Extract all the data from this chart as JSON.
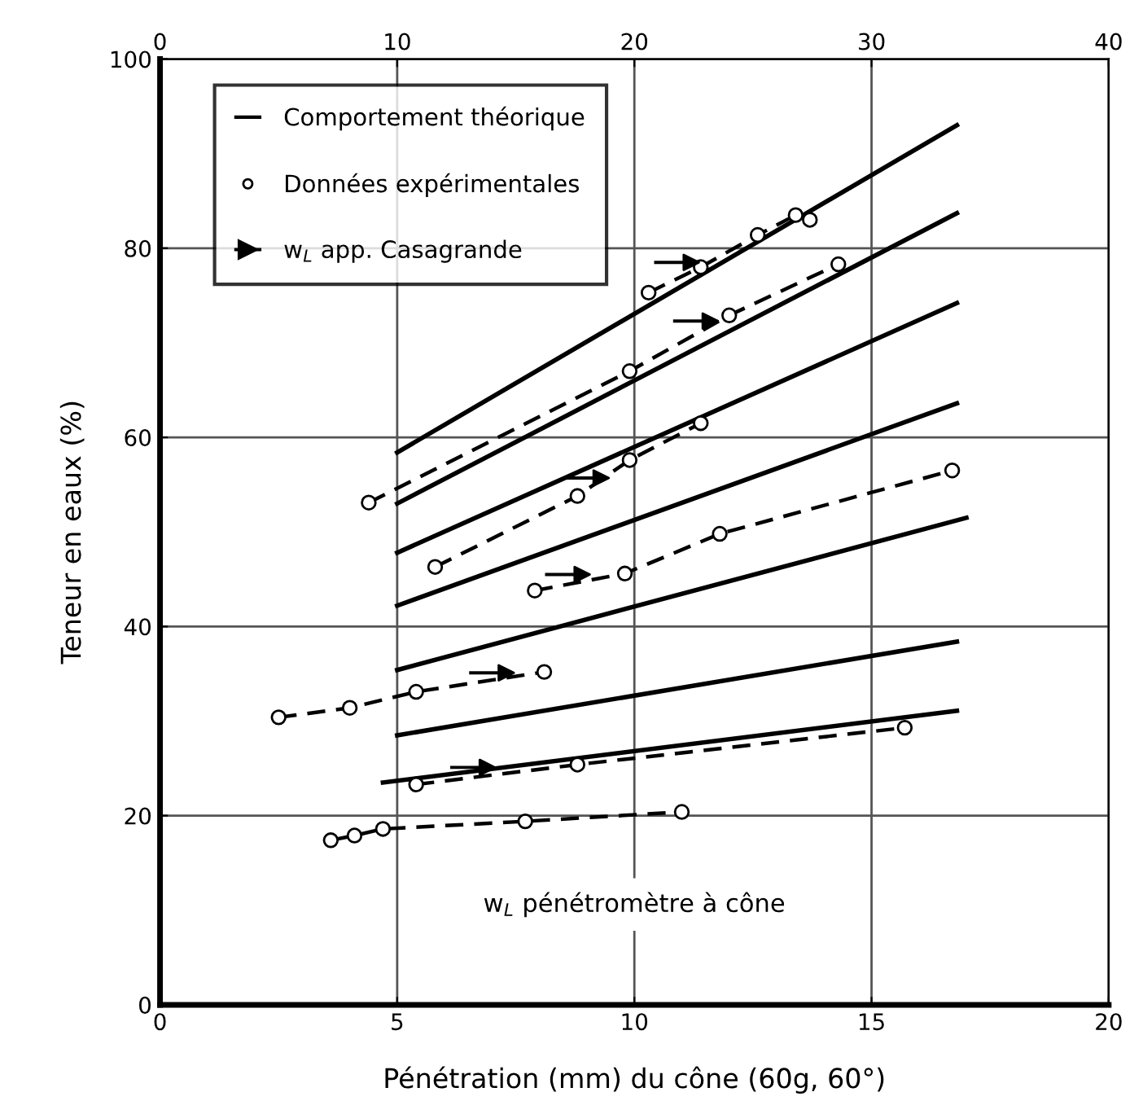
{
  "chart_data": {
    "type": "line",
    "xlabel": "Pénétration (mm) du cône (60g, 60°)",
    "ylabel": "Teneur en eaux (%)",
    "xlim": [
      0,
      20
    ],
    "xticks": [
      0,
      5,
      10,
      15,
      20
    ],
    "ylim": [
      0,
      100
    ],
    "yticks": [
      0,
      20,
      40,
      60,
      80,
      100
    ],
    "x2lim": [
      0,
      40
    ],
    "x2ticks": [
      0,
      10,
      20,
      30,
      40
    ],
    "grid": true,
    "legend": "top left",
    "annotations": [
      "w$_{L}$ pénétromètre à cône"
    ],
    "series": [
      {
        "name": "Comportement théorique",
        "line_style": "solid",
        "marker": "none",
        "color": "#000000",
        "x": [
          5,
          16.8
        ],
        "values": [
          58.4,
          93.0
        ]
      },
      {
        "line_style": "solid",
        "marker": "none",
        "color": "#000000",
        "x": [
          5,
          16.8
        ],
        "values": [
          53.0,
          83.7
        ]
      },
      {
        "line_style": "solid",
        "marker": "none",
        "color": "#000000",
        "x": [
          5,
          16.8
        ],
        "values": [
          47.8,
          74.2
        ]
      },
      {
        "line_style": "solid",
        "marker": "none",
        "color": "#000000",
        "x": [
          5,
          16.8
        ],
        "values": [
          42.2,
          63.6
        ]
      },
      {
        "line_style": "solid",
        "marker": "none",
        "color": "#000000",
        "x": [
          5,
          17.0
        ],
        "values": [
          35.4,
          51.5
        ]
      },
      {
        "line_style": "solid",
        "marker": "none",
        "color": "#000000",
        "x": [
          5,
          16.8
        ],
        "values": [
          28.5,
          38.4
        ]
      },
      {
        "line_style": "solid",
        "marker": "none",
        "color": "#000000",
        "x": [
          4.7,
          16.8
        ],
        "values": [
          23.5,
          31.1
        ]
      },
      {
        "name": "Données expérimentales",
        "line_style": "dashed",
        "marker": "circle",
        "color": "#000000",
        "x": [
          10.3,
          11.4,
          12.6,
          13.4,
          13.7
        ],
        "values": [
          75.3,
          78.0,
          81.4,
          83.5,
          83.0
        ]
      },
      {
        "line_style": "dashed",
        "marker": "circle",
        "color": "#000000",
        "x": [
          4.4,
          9.9,
          12.0,
          14.3
        ],
        "values": [
          53.1,
          67.0,
          72.9,
          78.3
        ]
      },
      {
        "line_style": "dashed",
        "marker": "circle",
        "color": "#000000",
        "x": [
          5.8,
          8.8,
          9.9,
          11.4
        ],
        "values": [
          46.3,
          53.8,
          57.6,
          61.5
        ]
      },
      {
        "line_style": "dashed",
        "marker": "circle",
        "color": "#000000",
        "x": [
          7.9,
          9.8,
          11.8,
          16.7
        ],
        "values": [
          43.8,
          45.6,
          49.8,
          56.5
        ]
      },
      {
        "line_style": "dashed",
        "marker": "circle",
        "color": "#000000",
        "x": [
          2.5,
          4.0,
          5.4,
          8.1
        ],
        "values": [
          30.4,
          31.4,
          33.1,
          35.2
        ]
      },
      {
        "line_style": "dashed",
        "marker": "circle",
        "color": "#000000",
        "x": [
          5.4,
          8.8,
          15.7
        ],
        "values": [
          23.3,
          25.4,
          29.3
        ]
      },
      {
        "line_style": "dashed",
        "marker": "circle",
        "color": "#000000",
        "x": [
          3.6,
          4.1,
          4.7,
          7.7,
          11.0
        ],
        "values": [
          17.4,
          17.9,
          18.6,
          19.4,
          20.4
        ]
      },
      {
        "name": "w$_{L}$ app. Casagrande",
        "type": "scatter",
        "marker": "triangle",
        "color": "#000000",
        "x": [
          11.2,
          11.6,
          9.3,
          8.9,
          7.3,
          6.9
        ],
        "values": [
          78.5,
          72.3,
          55.7,
          45.5,
          35.1,
          25.1
        ]
      }
    ]
  }
}
